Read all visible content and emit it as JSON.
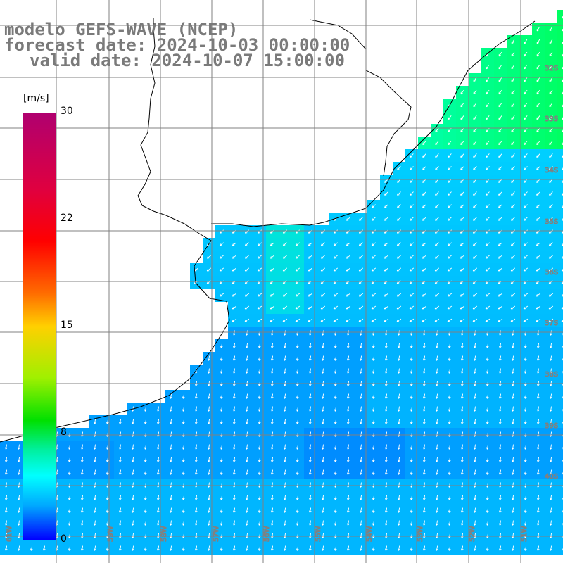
{
  "title": {
    "line1": "modelo GEFS-WAVE (NCEP)",
    "line2": "forecast date: 2024-10-03 00:00:00",
    "line3": "valid date: 2024-10-07 15:00:00"
  },
  "colorbar": {
    "unit": "[m/s]",
    "ticks": [
      "30",
      "22",
      "15",
      "8",
      "0"
    ],
    "colors": [
      "#b0006f",
      "#ff0000",
      "#ff8000",
      "#ffff00",
      "#00e000",
      "#00ffff",
      "#0000ff"
    ]
  },
  "map": {
    "lat_labels": [
      "32S",
      "33S",
      "34S",
      "35S",
      "36S",
      "37S",
      "38S",
      "39S",
      "40S"
    ],
    "lon_labels": [
      "61W",
      "59W",
      "58W",
      "57W",
      "56W",
      "55W",
      "54W",
      "53W",
      "52W",
      "51W"
    ],
    "land_color": "#ffffff",
    "grid_color": "#808080",
    "arrow_color": "#ffffff"
  }
}
